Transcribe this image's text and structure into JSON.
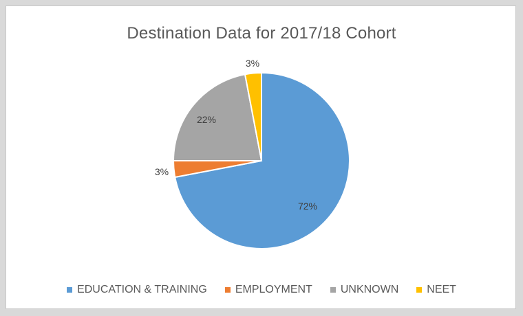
{
  "chart_data": {
    "type": "pie",
    "title": "Destination Data for 2017/18 Cohort",
    "slices": [
      {
        "label": "EDUCATION & TRAINING",
        "value": 72,
        "display": "72%",
        "color": "#5b9bd5"
      },
      {
        "label": "EMPLOYMENT",
        "value": 3,
        "display": "3%",
        "color": "#ed7d31"
      },
      {
        "label": "UNKNOWN",
        "value": 22,
        "display": "22%",
        "color": "#a5a5a5"
      },
      {
        "label": "NEET",
        "value": 3,
        "display": "3%",
        "color": "#ffc000"
      }
    ],
    "legend_position": "bottom"
  }
}
